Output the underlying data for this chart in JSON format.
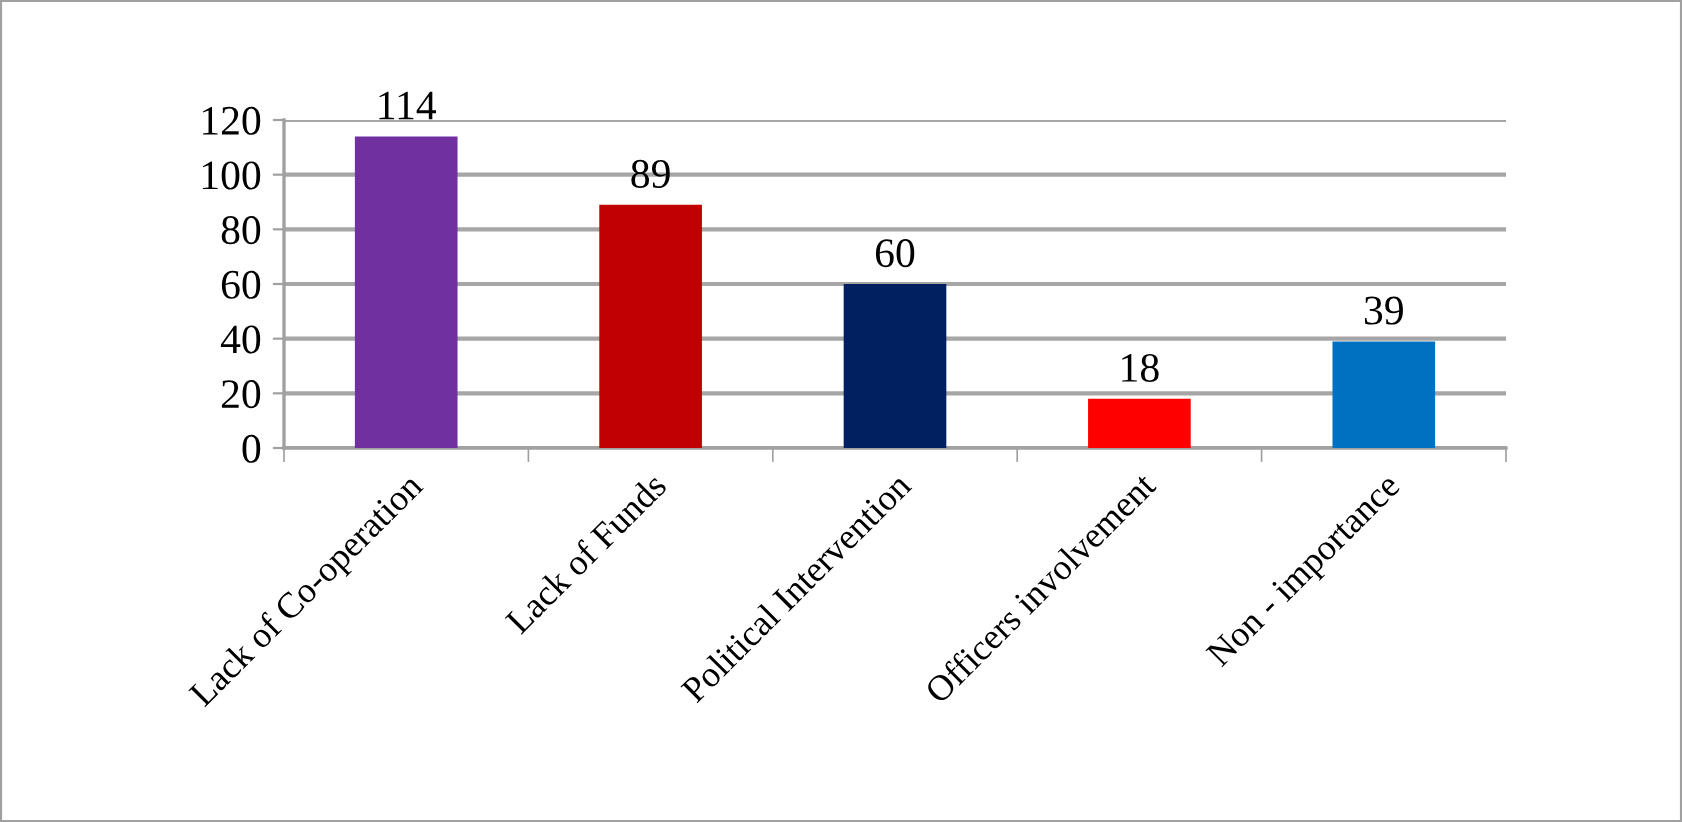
{
  "chart_data": {
    "type": "bar",
    "categories": [
      "Lack of Co-operation",
      "Lack of Funds",
      "Political Intervention",
      "Officers involvement",
      "Non - importance"
    ],
    "values": [
      114,
      89,
      60,
      18,
      39
    ],
    "colors": [
      "#7030a0",
      "#c00000",
      "#002060",
      "#ff0000",
      "#0070c0"
    ],
    "ylim": [
      0,
      120
    ],
    "yticks": [
      0,
      20,
      40,
      60,
      80,
      100,
      120
    ],
    "grid": "y",
    "data_labels": true
  }
}
